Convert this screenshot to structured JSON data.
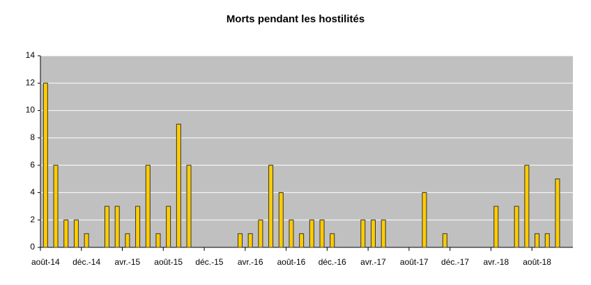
{
  "chart_data": {
    "type": "bar",
    "title": "Morts pendant les hostilités",
    "categories": [
      "août-14",
      null,
      null,
      null,
      "déc.-14",
      null,
      null,
      null,
      "avr.-15",
      null,
      null,
      null,
      "août-15",
      null,
      null,
      null,
      "déc.-15",
      null,
      null,
      null,
      "avr.-16",
      null,
      null,
      null,
      "août-16",
      null,
      null,
      null,
      "déc.-16",
      null,
      null,
      null,
      "avr.-17",
      null,
      null,
      null,
      "août-17",
      null,
      null,
      null,
      "déc.-17",
      null,
      null,
      null,
      "avr.-18",
      null,
      null,
      null,
      "août-18",
      null,
      null,
      null
    ],
    "values": [
      12,
      6,
      2,
      2,
      1,
      0,
      3,
      3,
      1,
      3,
      6,
      1,
      3,
      9,
      6,
      0,
      0,
      0,
      0,
      1,
      1,
      2,
      6,
      4,
      2,
      1,
      2,
      2,
      1,
      0,
      0,
      2,
      2,
      2,
      0,
      0,
      0,
      4,
      0,
      1,
      0,
      0,
      0,
      0,
      3,
      0,
      3,
      6,
      1,
      1,
      5,
      0
    ],
    "color": "#ffcc00",
    "ylim": [
      0,
      14
    ],
    "yticks": [
      0,
      2,
      4,
      6,
      8,
      10,
      12,
      14
    ],
    "grid": true
  }
}
